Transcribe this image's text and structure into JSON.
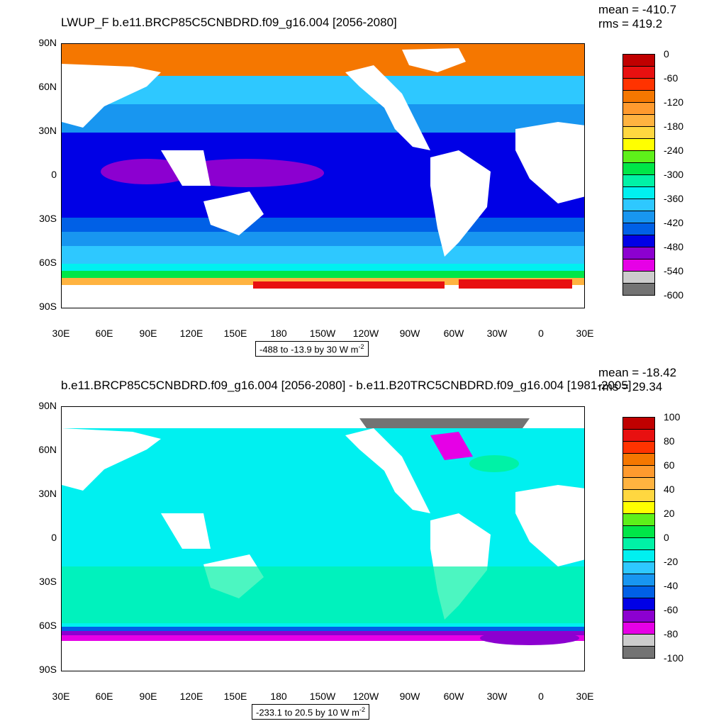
{
  "panels": [
    {
      "title": "LWUP_F b.e11.BRCP85C5CNBDRD.f09_g16.004 [2056-2080]",
      "stats": {
        "mean": "mean = -410.7",
        "rms": "rms = 419.2"
      },
      "info_range": "-488 to -13.9 by 30",
      "info_units": "W m",
      "info_exp": "-2",
      "colorbar": {
        "labels": [
          "0",
          "-60",
          "-120",
          "-180",
          "-240",
          "-300",
          "-360",
          "-420",
          "-480",
          "-540",
          "-600"
        ],
        "colors": [
          "#c00000",
          "#e81010",
          "#ff3300",
          "#f57700",
          "#ff9a2e",
          "#ffb340",
          "#ffd740",
          "#ffff00",
          "#5ef01a",
          "#00e648",
          "#00f2a6",
          "#00f0f0",
          "#2ec8ff",
          "#1896f0",
          "#0060e6",
          "#0000e6",
          "#8c00d0",
          "#e600e6",
          "#cccccc",
          "#737373"
        ]
      }
    },
    {
      "title": "b.e11.BRCP85C5CNBDRD.f09_g16.004 [2056-2080] - b.e11.B20TRC5CNBDRD.f09_g16.004 [1981-2005]",
      "stats": {
        "mean": "mean = -18.42",
        "rms": "rms = 29.34"
      },
      "info_range": "-233.1 to 20.5 by 10",
      "info_units": "W m",
      "info_exp": "-2",
      "colorbar": {
        "labels": [
          "100",
          "80",
          "60",
          "40",
          "20",
          "0",
          "-20",
          "-40",
          "-60",
          "-80",
          "-100"
        ],
        "colors": [
          "#c00000",
          "#e81010",
          "#ff3300",
          "#f57700",
          "#ff9a2e",
          "#ffb340",
          "#ffd740",
          "#ffff00",
          "#5ef01a",
          "#00e648",
          "#00f2a6",
          "#00f0f0",
          "#2ec8ff",
          "#1896f0",
          "#0060e6",
          "#0000e6",
          "#8c00d0",
          "#e600e6",
          "#cccccc",
          "#737373"
        ]
      }
    }
  ],
  "axes": {
    "lat_labels": [
      "90N",
      "60N",
      "30N",
      "0",
      "30S",
      "60S",
      "90S"
    ],
    "lon_labels": [
      "30E",
      "60E",
      "90E",
      "120E",
      "150E",
      "180",
      "150W",
      "120W",
      "90W",
      "60W",
      "30W",
      "0",
      "30E"
    ]
  },
  "colors": {
    "land": "#ffffff",
    "top_deep": "#0000e6",
    "top_purple": "#8c00d0",
    "top_blue": "#0060e6",
    "top_mid": "#1896f0",
    "top_light": "#2ec8ff",
    "top_cyan": "#00f0f0",
    "top_orange": "#f57700",
    "top_red": "#e81010",
    "bot_main": "#00f0f0",
    "bot_green": "#00f2a6",
    "bot_purple": "#8c00d0",
    "bot_magenta": "#e600e6",
    "bot_gray": "#737373"
  }
}
